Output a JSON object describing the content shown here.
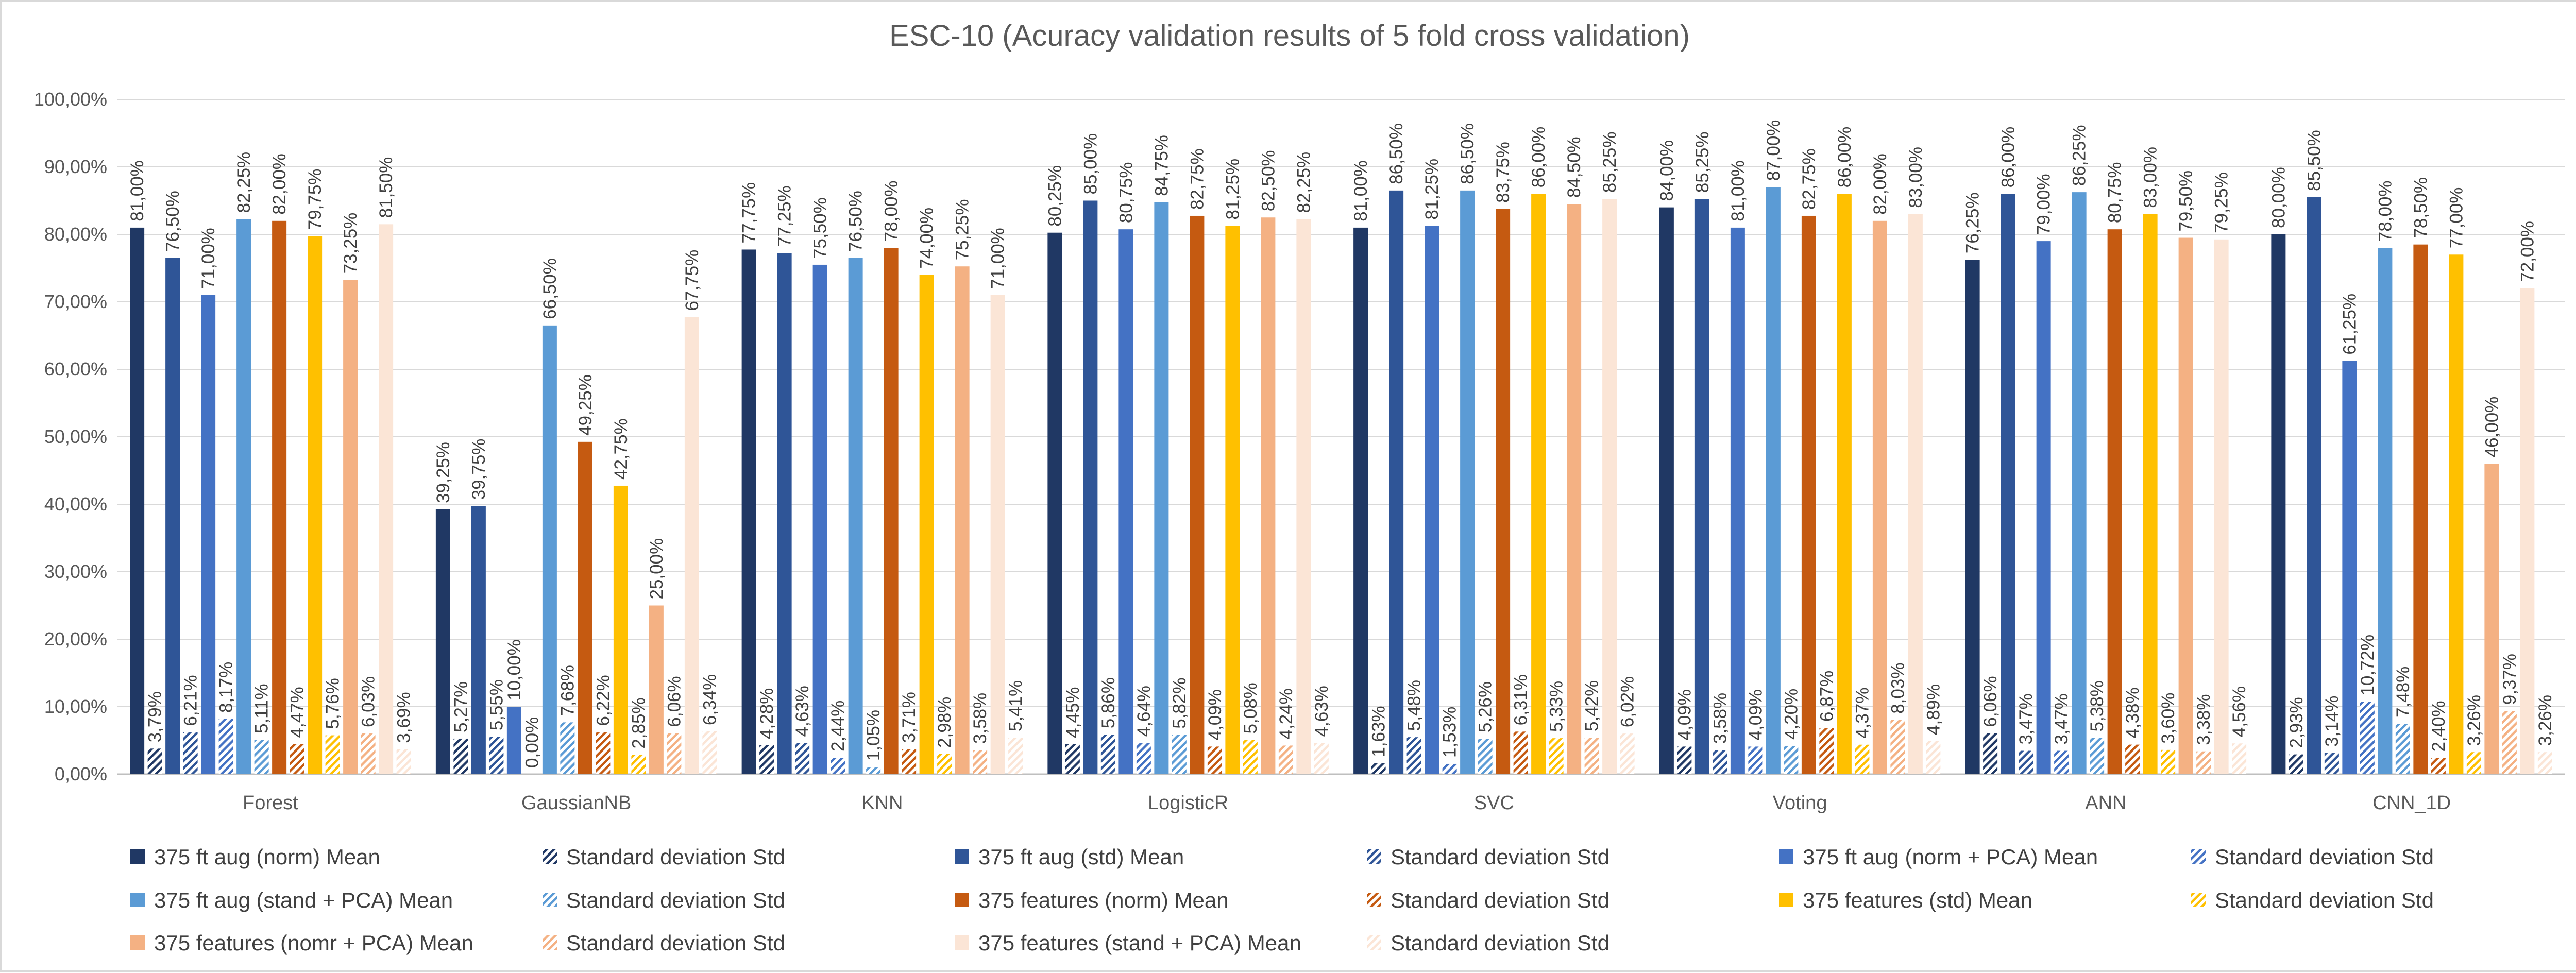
{
  "chart_data": {
    "type": "bar",
    "title": "ESC-10 (Acuracy validation results of 5 fold cross validation)",
    "xlabel": "",
    "ylabel": "",
    "ylim": [
      0,
      100
    ],
    "y_ticks": [
      "0,00%",
      "10,00%",
      "20,00%",
      "30,00%",
      "40,00%",
      "50,00%",
      "60,00%",
      "70,00%",
      "80,00%",
      "90,00%",
      "100,00%"
    ],
    "grid": true,
    "legend_position": "bottom",
    "categories": [
      "Forest",
      "GaussianNB",
      "KNN",
      "LogisticR",
      "SVC",
      "Voting",
      "ANN",
      "CNN_1D"
    ],
    "series": [
      {
        "name": "375 ft aug (norm) Mean",
        "kind": "mean",
        "color": "#203864",
        "values": [
          81.0,
          39.25,
          77.75,
          80.25,
          81.0,
          84.0,
          76.25,
          80.0
        ],
        "labels": [
          "81,00%",
          "39,25%",
          "77,75%",
          "80,25%",
          "81,00%",
          "84,00%",
          "76,25%",
          "80,00%"
        ]
      },
      {
        "name": "Standard deviation Std",
        "kind": "std",
        "color": "#203864",
        "values": [
          3.79,
          5.27,
          4.28,
          4.45,
          1.63,
          4.09,
          6.06,
          2.93
        ],
        "labels": [
          "3,79%",
          "5,27%",
          "4,28%",
          "4,45%",
          "1,63%",
          "4,09%",
          "6,06%",
          "2,93%"
        ]
      },
      {
        "name": "375 ft aug  (std) Mean",
        "kind": "mean",
        "color": "#2f5597",
        "values": [
          76.5,
          39.75,
          77.25,
          85.0,
          86.5,
          85.25,
          86.0,
          85.5
        ],
        "labels": [
          "76,50%",
          "39,75%",
          "77,25%",
          "85,00%",
          "86,50%",
          "85,25%",
          "86,00%",
          "85,50%"
        ]
      },
      {
        "name": "Standard deviation Std",
        "kind": "std",
        "color": "#2f5597",
        "values": [
          6.21,
          5.55,
          4.63,
          5.86,
          5.48,
          3.58,
          3.47,
          3.14
        ],
        "labels": [
          "6,21%",
          "5,55%",
          "4,63%",
          "5,86%",
          "5,48%",
          "3,58%",
          "3,47%",
          "3,14%"
        ]
      },
      {
        "name": "375 ft aug  (norm + PCA) Mean",
        "kind": "mean",
        "color": "#4472c4",
        "values": [
          71.0,
          10.0,
          75.5,
          80.75,
          81.25,
          81.0,
          79.0,
          61.25
        ],
        "labels": [
          "71,00%",
          "10,00%",
          "75,50%",
          "80,75%",
          "81,25%",
          "81,00%",
          "79,00%",
          "61,25%"
        ]
      },
      {
        "name": "Standard deviation Std",
        "kind": "std",
        "color": "#4472c4",
        "values": [
          8.17,
          0.0,
          2.44,
          4.64,
          1.53,
          4.09,
          3.47,
          10.72
        ],
        "labels": [
          "8,17%",
          "0,00%",
          "2,44%",
          "4,64%",
          "1,53%",
          "4,09%",
          "3,47%",
          "10,72%"
        ]
      },
      {
        "name": "375 ft aug  (stand + PCA) Mean",
        "kind": "mean",
        "color": "#5b9bd5",
        "values": [
          82.25,
          66.5,
          76.5,
          84.75,
          86.5,
          87.0,
          86.25,
          78.0
        ],
        "labels": [
          "82,25%",
          "66,50%",
          "76,50%",
          "84,75%",
          "86,50%",
          "87,00%",
          "86,25%",
          "78,00%"
        ]
      },
      {
        "name": "Standard deviation Std",
        "kind": "std",
        "color": "#5b9bd5",
        "values": [
          5.11,
          7.68,
          1.05,
          5.82,
          5.26,
          4.2,
          5.38,
          7.48
        ],
        "labels": [
          "5,11%",
          "7,68%",
          "1,05%",
          "5,82%",
          "5,26%",
          "4,20%",
          "5,38%",
          "7,48%"
        ]
      },
      {
        "name": "375 features  (norm) Mean",
        "kind": "mean",
        "color": "#c55a11",
        "values": [
          82.0,
          49.25,
          78.0,
          82.75,
          83.75,
          82.75,
          80.75,
          78.5
        ],
        "labels": [
          "82,00%",
          "49,25%",
          "78,00%",
          "82,75%",
          "83,75%",
          "82,75%",
          "80,75%",
          "78,50%"
        ]
      },
      {
        "name": "Standard deviation Std",
        "kind": "std",
        "color": "#c55a11",
        "values": [
          4.47,
          6.22,
          3.71,
          4.09,
          6.31,
          6.87,
          4.38,
          2.4
        ],
        "labels": [
          "4,47%",
          "6,22%",
          "3,71%",
          "4,09%",
          "6,31%",
          "6,87%",
          "4,38%",
          "2,40%"
        ]
      },
      {
        "name": "375 features  (std) Mean",
        "kind": "mean",
        "color": "#ffc000",
        "values": [
          79.75,
          42.75,
          74.0,
          81.25,
          86.0,
          86.0,
          83.0,
          77.0
        ],
        "labels": [
          "79,75%",
          "42,75%",
          "74,00%",
          "81,25%",
          "86,00%",
          "86,00%",
          "83,00%",
          "77,00%"
        ]
      },
      {
        "name": "Standard deviation Std",
        "kind": "std",
        "color": "#ffc000",
        "values": [
          5.76,
          2.85,
          2.98,
          5.08,
          5.33,
          4.37,
          3.6,
          3.26
        ],
        "labels": [
          "5,76%",
          "2,85%",
          "2,98%",
          "5,08%",
          "5,33%",
          "4,37%",
          "3,60%",
          "3,26%"
        ]
      },
      {
        "name": "375 features (nomr + PCA) Mean",
        "kind": "mean",
        "color": "#f4b183",
        "values": [
          73.25,
          25.0,
          75.25,
          82.5,
          84.5,
          82.0,
          79.5,
          46.0
        ],
        "labels": [
          "73,25%",
          "25,00%",
          "75,25%",
          "82,50%",
          "84,50%",
          "82,00%",
          "79,50%",
          "46,00%"
        ]
      },
      {
        "name": "Standard deviation Std",
        "kind": "std",
        "color": "#f4b183",
        "values": [
          6.03,
          6.06,
          3.58,
          4.24,
          5.42,
          8.03,
          3.38,
          9.37
        ],
        "labels": [
          "6,03%",
          "6,06%",
          "3,58%",
          "4,24%",
          "5,42%",
          "8,03%",
          "3,38%",
          "9,37%"
        ]
      },
      {
        "name": "375 features (stand + PCA) Mean",
        "kind": "mean",
        "color": "#fbe5d6",
        "values": [
          81.5,
          67.75,
          71.0,
          82.25,
          85.25,
          83.0,
          79.25,
          72.0
        ],
        "labels": [
          "81,50%",
          "67,75%",
          "71,00%",
          "82,25%",
          "85,25%",
          "83,00%",
          "79,25%",
          "72,00%"
        ]
      },
      {
        "name": "Standard deviation Std",
        "kind": "std",
        "color": "#fbe5d6",
        "values": [
          3.69,
          6.34,
          5.41,
          4.63,
          6.02,
          4.89,
          4.56,
          3.26
        ],
        "labels": [
          "3,69%",
          "6,34%",
          "5,41%",
          "4,63%",
          "6,02%",
          "4,89%",
          "4,56%",
          "3,26%"
        ]
      }
    ]
  }
}
